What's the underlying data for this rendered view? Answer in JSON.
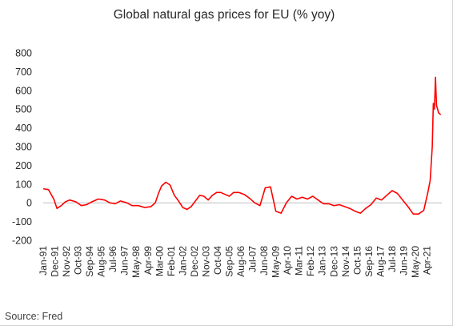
{
  "title": "Global natural gas prices for EU (% yoy)",
  "source": "Source: Fred",
  "colors": {
    "series": "#ff0000",
    "axis": "#bfbfbf",
    "text": "#262626"
  },
  "chart_data": {
    "type": "line",
    "title": "Global natural gas prices for EU (% yoy)",
    "xlabel": "",
    "ylabel": "",
    "ylim": [
      -200,
      800
    ],
    "yticks": [
      -200,
      -100,
      0,
      100,
      200,
      300,
      400,
      500,
      600,
      700,
      800
    ],
    "xlim": [
      "1991-01",
      "2022-06"
    ],
    "grid": false,
    "legend": "none",
    "x_tick_labels": [
      "Jan-91",
      "Dec-91",
      "Nov-92",
      "Oct-93",
      "Sep-94",
      "Aug-95",
      "Jul-96",
      "Jun-97",
      "May-98",
      "Apr-99",
      "Mar-00",
      "Feb-01",
      "Jan-02",
      "Dec-02",
      "Nov-03",
      "Oct-04",
      "Sep-05",
      "Aug-06",
      "Jul-07",
      "Jun-08",
      "May-09",
      "Apr-10",
      "Mar-11",
      "Feb-12",
      "Jan-13",
      "Dec-13",
      "Nov-14",
      "Oct-15",
      "Sep-16",
      "Aug-17",
      "Jul-18",
      "Jun-19",
      "May-20",
      "Apr-21"
    ],
    "series": [
      {
        "x": [
          "1991-01",
          "1991-06",
          "1991-11",
          "1992-02",
          "1992-06",
          "1992-10",
          "1993-02",
          "1993-08",
          "1994-01",
          "1994-06",
          "1994-11",
          "1995-05",
          "1995-11",
          "1996-04",
          "1996-09",
          "1997-02",
          "1997-08",
          "1998-01",
          "1998-07",
          "1999-01",
          "1999-07",
          "1999-11",
          "2000-02",
          "2000-05",
          "2000-09",
          "2001-01",
          "2001-05",
          "2001-09",
          "2002-01",
          "2002-05",
          "2002-09",
          "2003-01",
          "2003-05",
          "2003-09",
          "2004-01",
          "2004-05",
          "2004-09",
          "2005-01",
          "2005-05",
          "2005-09",
          "2006-01",
          "2006-06",
          "2006-11",
          "2007-04",
          "2007-09",
          "2008-02",
          "2008-07",
          "2008-12",
          "2009-05",
          "2009-10",
          "2010-03",
          "2010-08",
          "2011-01",
          "2011-06",
          "2011-11",
          "2012-04",
          "2012-09",
          "2013-02",
          "2013-07",
          "2013-12",
          "2014-05",
          "2014-10",
          "2015-03",
          "2015-08",
          "2016-01",
          "2016-06",
          "2016-11",
          "2017-04",
          "2017-09",
          "2018-02",
          "2018-07",
          "2018-12",
          "2019-05",
          "2019-10",
          "2020-03",
          "2020-08",
          "2021-01",
          "2021-05",
          "2021-07",
          "2021-09",
          "2021-10",
          "2021-11",
          "2021-12",
          "2022-01",
          "2022-03",
          "2022-05"
        ],
        "values": [
          75,
          70,
          20,
          -30,
          -15,
          5,
          15,
          5,
          -15,
          -10,
          5,
          20,
          15,
          0,
          -5,
          10,
          0,
          -15,
          -15,
          -25,
          -20,
          0,
          50,
          90,
          110,
          95,
          40,
          10,
          -25,
          -35,
          -20,
          10,
          40,
          35,
          15,
          40,
          55,
          55,
          45,
          35,
          55,
          55,
          45,
          25,
          0,
          -15,
          80,
          85,
          -45,
          -55,
          0,
          35,
          20,
          30,
          20,
          35,
          15,
          -5,
          -5,
          -15,
          -10,
          -20,
          -30,
          -45,
          -55,
          -30,
          -10,
          25,
          15,
          40,
          65,
          50,
          15,
          -20,
          -60,
          -60,
          -40,
          60,
          120,
          300,
          530,
          500,
          670,
          520,
          480,
          470
        ]
      }
    ]
  }
}
